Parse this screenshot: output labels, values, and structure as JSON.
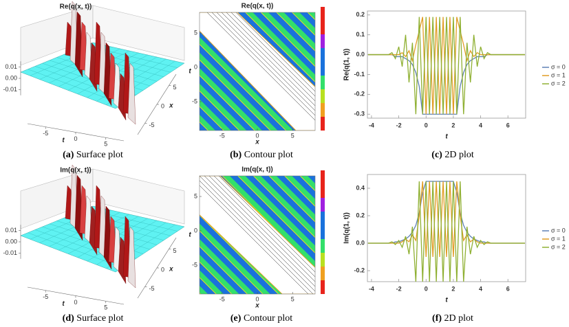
{
  "chart_data": [
    {
      "type": "surface",
      "title": "Re(q(x, t))",
      "label": "(a)",
      "caption": "Surface plot",
      "xlabel": "x",
      "ylabel": "t",
      "zlim": [
        -0.015,
        0.015
      ],
      "zticks": [
        0.01,
        {
          "value": 0,
          "label": "0.00"
        },
        -0.01
      ],
      "ylim": [
        -8,
        8
      ],
      "yticks": [
        -5,
        0,
        5
      ],
      "xlim": [
        -8,
        8
      ],
      "xticks": [
        5,
        0,
        -5
      ]
    },
    {
      "type": "contour",
      "title": "Re(q(x, t))",
      "label": "(b)",
      "caption": "Contour plot",
      "xlabel": "x",
      "ylabel": "t",
      "xlim": [
        -8.2,
        8.2
      ],
      "xticks": [
        -5,
        0,
        5
      ],
      "ylim": [
        -9.2,
        8
      ],
      "yticks": [
        5,
        0,
        -5
      ]
    },
    {
      "type": "line",
      "label": "(c)",
      "caption": "2D plot",
      "xlabel": "t",
      "ylabel": "Re(q(1, t))",
      "xlim": [
        -4.3,
        7.3
      ],
      "xticks": [
        -4,
        -2,
        0,
        2,
        4,
        6
      ],
      "ylim": [
        -0.32,
        0.22
      ],
      "yticks": [
        -0.3,
        -0.2,
        -0.1,
        {
          "value": 0,
          "label": "0.0"
        },
        0.1,
        0.2
      ],
      "x": [
        -4.25,
        -4,
        -3.75,
        -3.5,
        -3.25,
        -3,
        -2.75,
        -2.5,
        -2.25,
        -2,
        -1.75,
        -1.5,
        -1.25,
        -1,
        -0.75,
        -0.5,
        -0.25,
        0,
        0.25,
        0.5,
        0.75,
        1,
        1.25,
        1.5,
        1.75,
        2,
        2.25,
        2.5,
        2.75,
        3,
        3.25,
        3.5,
        3.75,
        4,
        4.25,
        4.5,
        4.75,
        5,
        5.25,
        5.5,
        5.75,
        6,
        6.25,
        6.5,
        6.75,
        7,
        7.25
      ],
      "series": [
        {
          "name": "σ = 0",
          "color": "#5e81b5",
          "values": [
            0,
            0,
            0,
            0,
            0,
            0,
            0,
            0,
            -0.01,
            -0.01,
            -0.01,
            -0.02,
            -0.03,
            -0.05,
            -0.09,
            -0.16,
            -0.3,
            -0.3,
            -0.3,
            -0.3,
            -0.3,
            -0.3,
            -0.3,
            -0.3,
            -0.3,
            -0.3,
            -0.3,
            -0.16,
            -0.09,
            -0.05,
            -0.03,
            -0.02,
            -0.01,
            -0.01,
            -0.01,
            0,
            0,
            0,
            0,
            0,
            0,
            0,
            0,
            0,
            0,
            0,
            0
          ]
        },
        {
          "name": "σ = 1",
          "color": "#e19c24",
          "values": [
            0,
            0,
            0,
            0,
            0,
            0,
            0,
            0,
            0,
            0,
            0.01,
            -0.01,
            0.02,
            -0.03,
            0.05,
            0.12,
            0.19,
            -0.3,
            0.19,
            -0.3,
            0.19,
            -0.3,
            0.19,
            -0.3,
            0.19,
            -0.3,
            0.19,
            0.12,
            0.05,
            -0.03,
            0.02,
            -0.01,
            0.01,
            0,
            0,
            0,
            0,
            0,
            0,
            0,
            0,
            0,
            0,
            0,
            0,
            0,
            0
          ]
        },
        {
          "name": "σ = 2",
          "color": "#8fb032",
          "values": [
            0,
            0,
            0,
            0,
            0,
            0,
            0,
            0.01,
            -0.02,
            0.04,
            -0.06,
            0.1,
            -0.14,
            0.06,
            -0.3,
            0.19,
            -0.3,
            0.19,
            -0.3,
            0.19,
            -0.3,
            0.19,
            -0.3,
            0.19,
            -0.3,
            0.19,
            -0.3,
            0.19,
            -0.3,
            0.06,
            -0.14,
            0.1,
            -0.06,
            0.04,
            -0.02,
            0.01,
            0,
            0,
            0,
            0,
            0,
            0,
            0,
            0,
            0,
            0,
            0
          ]
        }
      ]
    },
    {
      "type": "surface",
      "title": "Im(q(x, t))",
      "label": "(d)",
      "caption": "Surface plot",
      "xlabel": "x",
      "ylabel": "t",
      "zlim": [
        -0.015,
        0.015
      ],
      "zticks": [
        0.01,
        {
          "value": 0,
          "label": "0.00"
        },
        -0.01
      ],
      "ylim": [
        -8,
        8
      ],
      "yticks": [
        -5,
        0,
        5
      ],
      "xlim": [
        -8,
        8
      ],
      "xticks": [
        5,
        0,
        -5
      ]
    },
    {
      "type": "contour",
      "title": "Im(q(x, t))",
      "label": "(e)",
      "caption": "Contour plot",
      "xlabel": "x",
      "ylabel": "t",
      "xlim": [
        -8.2,
        8.2
      ],
      "xticks": [
        -5,
        0,
        5
      ],
      "ylim": [
        -9.2,
        8
      ],
      "yticks": [
        5,
        0,
        -5
      ]
    },
    {
      "type": "line",
      "label": "(f)",
      "caption": "2D plot",
      "xlabel": "t",
      "ylabel": "Im(q(1, t))",
      "xlim": [
        -4.3,
        7.3
      ],
      "xticks": [
        -4,
        -2,
        0,
        2,
        4,
        6
      ],
      "ylim": [
        -0.28,
        0.5
      ],
      "yticks": [
        -0.2,
        {
          "value": 0,
          "label": "0.0"
        },
        0.2,
        0.4
      ],
      "x": [
        -4.25,
        -4,
        -3.75,
        -3.5,
        -3.25,
        -3,
        -2.75,
        -2.5,
        -2.25,
        -2,
        -1.75,
        -1.5,
        -1.25,
        -1,
        -0.75,
        -0.5,
        -0.25,
        0,
        0.25,
        0.5,
        0.75,
        1,
        1.25,
        1.5,
        1.75,
        2,
        2.25,
        2.5,
        2.75,
        3,
        3.25,
        3.5,
        3.75,
        4,
        4.25,
        4.5,
        4.75,
        5,
        5.25,
        5.5,
        5.75,
        6,
        6.25,
        6.5,
        6.75,
        7,
        7.25
      ],
      "series": [
        {
          "name": "σ = 0",
          "color": "#5e81b5",
          "values": [
            0,
            0,
            0,
            0,
            0,
            0,
            0,
            0,
            0.01,
            0.01,
            0.02,
            0.03,
            0.05,
            0.08,
            0.13,
            0.22,
            0.37,
            0.45,
            0.45,
            0.45,
            0.45,
            0.45,
            0.45,
            0.45,
            0.45,
            0.45,
            0.37,
            0.22,
            0.13,
            0.08,
            0.05,
            0.03,
            0.02,
            0.01,
            0.01,
            0,
            0,
            0,
            0,
            0,
            0,
            0,
            0,
            0,
            0,
            0,
            0
          ]
        },
        {
          "name": "σ = 1",
          "color": "#e19c24",
          "values": [
            0,
            0,
            0,
            0,
            0,
            0,
            0,
            0,
            0,
            0,
            0.01,
            0.03,
            0.01,
            0.06,
            0.02,
            0.2,
            0.45,
            -0.1,
            0.45,
            -0.1,
            0.45,
            -0.1,
            0.45,
            -0.1,
            0.45,
            -0.1,
            0.45,
            0.2,
            0.02,
            0.06,
            0.01,
            0.03,
            0.01,
            0,
            0,
            0,
            0,
            0,
            0,
            0,
            0,
            0,
            0,
            0,
            0,
            0,
            0
          ]
        },
        {
          "name": "σ = 2",
          "color": "#8fb032",
          "values": [
            0,
            0,
            0,
            0,
            0,
            0,
            0,
            0.01,
            -0.01,
            0.02,
            -0.03,
            0.05,
            -0.08,
            0.12,
            -0.28,
            0.45,
            -0.28,
            0.45,
            -0.28,
            0.45,
            -0.28,
            0.45,
            -0.28,
            0.45,
            -0.28,
            0.45,
            -0.28,
            0.45,
            -0.28,
            0.12,
            -0.08,
            0.05,
            -0.03,
            0.02,
            -0.01,
            0.01,
            0,
            0,
            0,
            0,
            0,
            0,
            0,
            0,
            0,
            0,
            0
          ]
        }
      ]
    }
  ]
}
